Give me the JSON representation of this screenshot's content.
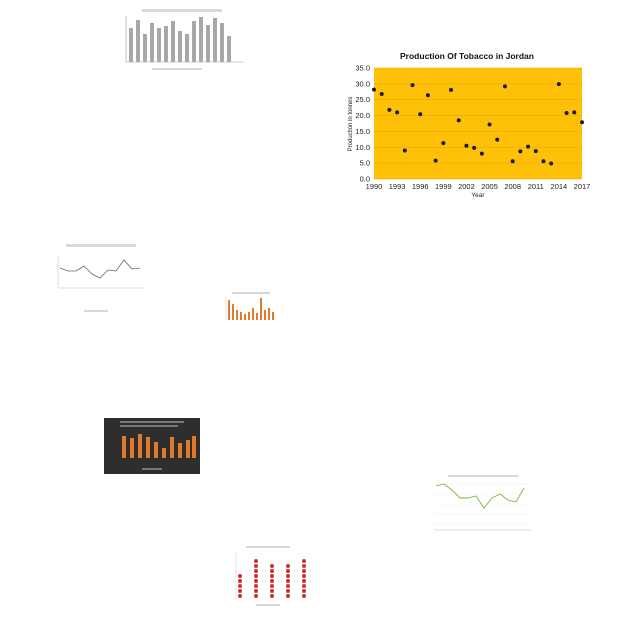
{
  "chart_data": {
    "type": "scatter",
    "title": "Production Of Tobacco in Jordan",
    "xlabel": "Year",
    "ylabel": "Production in tonnes",
    "xlim": [
      1990,
      2017
    ],
    "ylim": [
      0,
      35
    ],
    "x_ticks": [
      "1990",
      "1993",
      "1996",
      "1999",
      "2002",
      "2005",
      "2008",
      "2011",
      "2014",
      "2017"
    ],
    "y_ticks": [
      "0.0",
      "5.0",
      "10.0",
      "15.0",
      "20.0",
      "25.0",
      "30.0",
      "35.0"
    ],
    "plot_background": "#ffc107",
    "marker_color": "#1a1a1a",
    "grid": true,
    "points": [
      {
        "x": 1990,
        "y": 28.2
      },
      {
        "x": 1991,
        "y": 26.8
      },
      {
        "x": 1992,
        "y": 21.8
      },
      {
        "x": 1993,
        "y": 21.0
      },
      {
        "x": 1994,
        "y": 9.0
      },
      {
        "x": 1995,
        "y": 29.6
      },
      {
        "x": 1996,
        "y": 20.4
      },
      {
        "x": 1997,
        "y": 26.4
      },
      {
        "x": 1998,
        "y": 5.8
      },
      {
        "x": 1999,
        "y": 11.3
      },
      {
        "x": 2000,
        "y": 28.1
      },
      {
        "x": 2001,
        "y": 18.5
      },
      {
        "x": 2002,
        "y": 10.5
      },
      {
        "x": 2003,
        "y": 9.8
      },
      {
        "x": 2004,
        "y": 8.0
      },
      {
        "x": 2005,
        "y": 17.2
      },
      {
        "x": 2006,
        "y": 12.4
      },
      {
        "x": 2007,
        "y": 29.2
      },
      {
        "x": 2008,
        "y": 5.6
      },
      {
        "x": 2009,
        "y": 8.7
      },
      {
        "x": 2010,
        "y": 10.2
      },
      {
        "x": 2011,
        "y": 8.8
      },
      {
        "x": 2012,
        "y": 5.6
      },
      {
        "x": 2013,
        "y": 4.9
      },
      {
        "x": 2014,
        "y": 29.9
      },
      {
        "x": 2015,
        "y": 20.8
      },
      {
        "x": 2016,
        "y": 21.0
      },
      {
        "x": 2017,
        "y": 17.9
      }
    ]
  }
}
